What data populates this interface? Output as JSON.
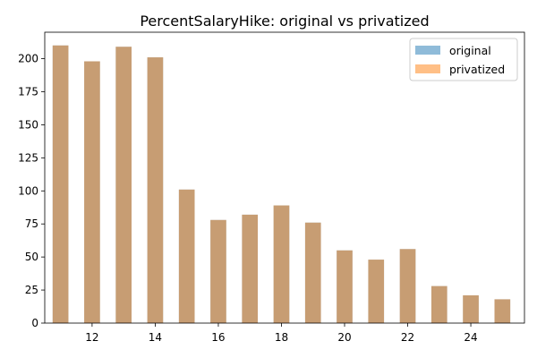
{
  "chart_data": {
    "type": "bar",
    "title": "PercentSalaryHike: original vs privatized",
    "xlabel": "",
    "ylabel": "",
    "x": [
      11,
      12,
      13,
      14,
      15,
      16,
      17,
      18,
      19,
      20,
      21,
      22,
      23,
      24,
      25
    ],
    "series": [
      {
        "name": "original",
        "color": "#1f77b4",
        "opacity": 0.5,
        "values": [
          210,
          198,
          209,
          201,
          101,
          78,
          82,
          89,
          76,
          55,
          48,
          56,
          28,
          21,
          18
        ]
      },
      {
        "name": "privatized",
        "color": "#ff7f0e",
        "opacity": 0.5,
        "values": [
          210,
          198,
          209,
          201,
          101,
          78,
          82,
          89,
          76,
          55,
          48,
          56,
          28,
          21,
          18
        ]
      }
    ],
    "xlim": [
      10.5,
      25.7
    ],
    "ylim": [
      0,
      220
    ],
    "xticks": [
      12,
      14,
      16,
      18,
      20,
      22,
      24
    ],
    "yticks": [
      0,
      25,
      50,
      75,
      100,
      125,
      150,
      175,
      200
    ],
    "grid": false,
    "legend_position": "top-right"
  }
}
